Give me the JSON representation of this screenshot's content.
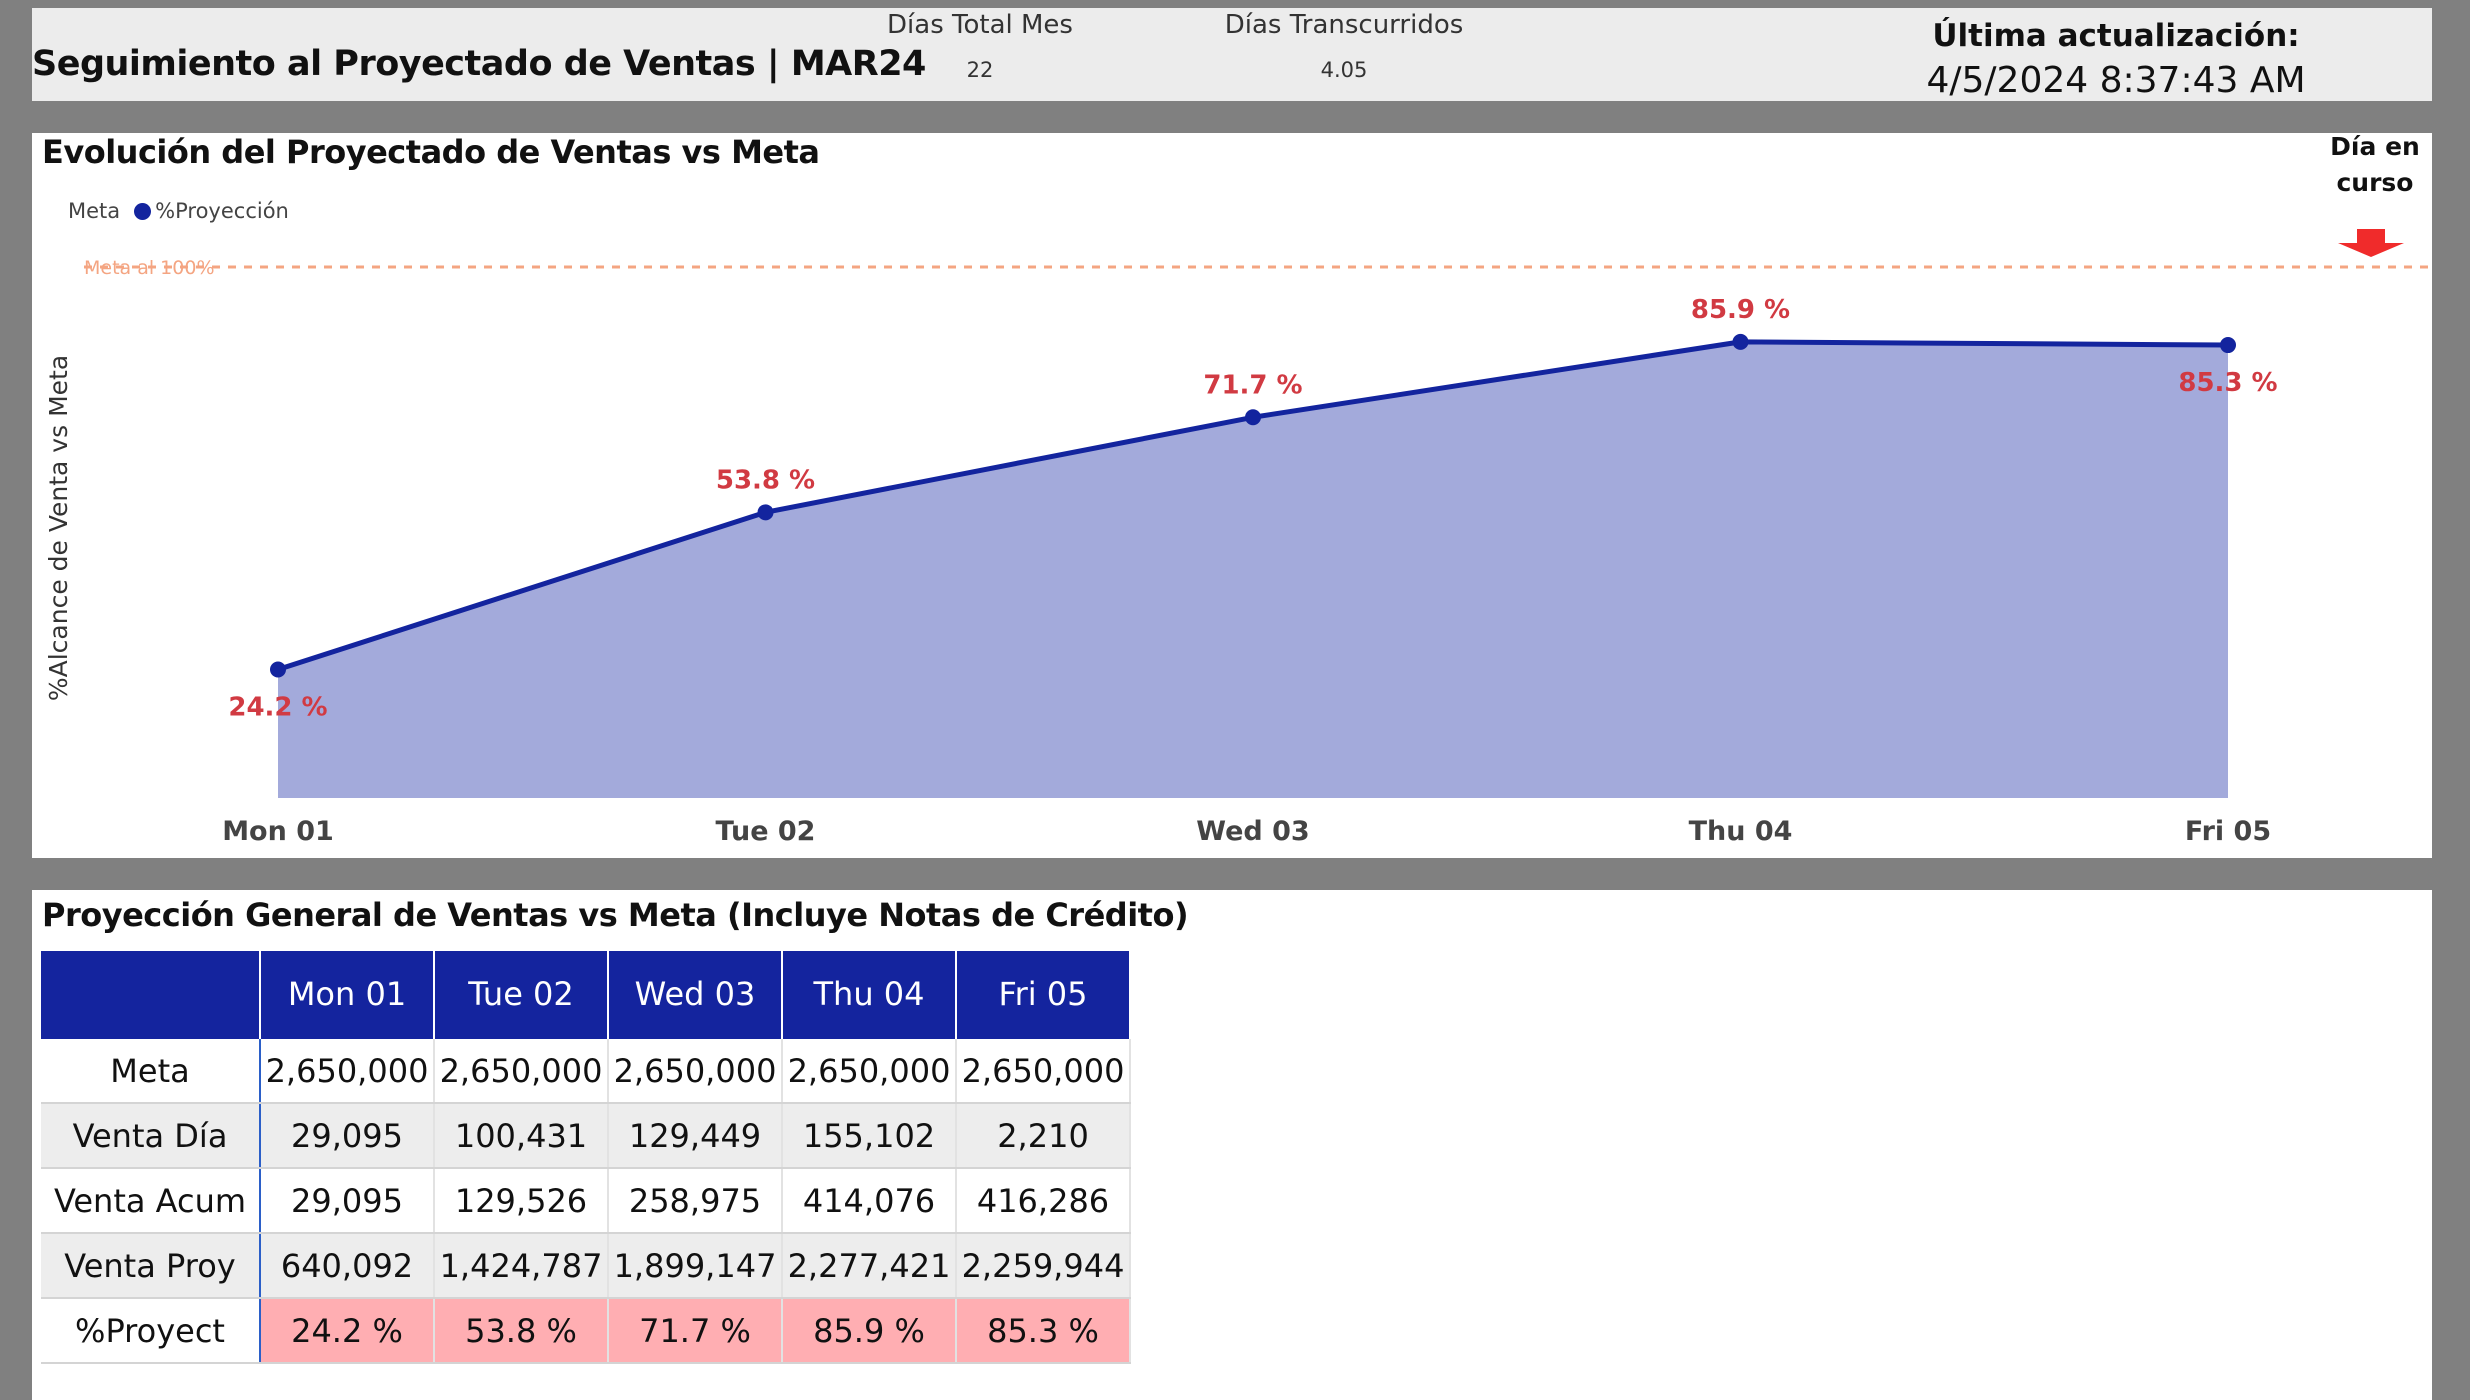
{
  "header": {
    "title": "Seguimiento al Proyectado de Ventas | MAR24",
    "dias_total_label": "Días Total Mes",
    "dias_total_value": "22",
    "dias_trans_label": "Días Transcurridos",
    "dias_trans_value": "4.05",
    "update_label": "Última actualización:",
    "update_value": "4/5/2024 8:37:43 AM"
  },
  "chart_section": {
    "title": "Evolución del Proyectado de Ventas vs Meta",
    "legend_meta": "Meta",
    "legend_proy": "%Proyección",
    "dia_en_curso": "Día en curso",
    "meta_line_label": "Meta al 100%",
    "ylabel": "%Alcance de Venta vs Meta"
  },
  "chart_data": {
    "type": "area",
    "categories": [
      "Mon 01",
      "Tue 02",
      "Wed 03",
      "Thu 04",
      "Fri 05"
    ],
    "series": [
      {
        "name": "%Proyección",
        "values": [
          24.2,
          53.8,
          71.7,
          85.9,
          85.3
        ],
        "labels": [
          "24.2 %",
          "53.8 %",
          "71.7 %",
          "85.9 %",
          "85.3 %"
        ]
      }
    ],
    "reference_line": {
      "name": "Meta al 100%",
      "value": 100
    },
    "ylabel": "%Alcance de Venta vs Meta",
    "xlabel": "",
    "ylim": [
      0,
      100
    ],
    "grid": false,
    "legend": "top-left",
    "colors": {
      "line": "#13249e",
      "area": "#a3aadb",
      "meta": "#f4a582",
      "label": "#d13a42"
    }
  },
  "table_section": {
    "title": "Proyección General de Ventas vs Meta (Incluye Notas de Crédito)",
    "columns": [
      "Mon 01",
      "Tue 02",
      "Wed 03",
      "Thu 04",
      "Fri 05"
    ],
    "rows": [
      {
        "label": "Meta",
        "values": [
          "2,650,000",
          "2,650,000",
          "2,650,000",
          "2,650,000",
          "2,650,000"
        ]
      },
      {
        "label": "Venta Día",
        "values": [
          "29,095",
          "100,431",
          "129,449",
          "155,102",
          "2,210"
        ]
      },
      {
        "label": "Venta Acum",
        "values": [
          "29,095",
          "129,526",
          "258,975",
          "414,076",
          "416,286"
        ]
      },
      {
        "label": "Venta Proy",
        "values": [
          "640,092",
          "1,424,787",
          "1,899,147",
          "2,277,421",
          "2,259,944"
        ]
      },
      {
        "label": "%Proyect",
        "values": [
          "24.2 %",
          "53.8 %",
          "71.7 %",
          "85.9 %",
          "85.3 %"
        ]
      }
    ]
  }
}
